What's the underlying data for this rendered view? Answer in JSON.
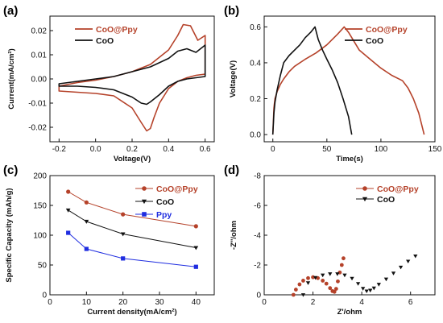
{
  "colors": {
    "coo_ppy": "#b5422a",
    "coo": "#111111",
    "ppy": "#1f2de0",
    "axis": "#111111"
  },
  "chart_data": [
    {
      "id": "a",
      "panel_label": "(a)",
      "type": "line",
      "xlabel": "Voltage(V)",
      "ylabel": "Current(mA/cm²)",
      "xlim": [
        -0.25,
        0.65
      ],
      "ylim": [
        -0.026,
        0.026
      ],
      "xticks": [
        -0.2,
        0.0,
        0.2,
        0.4,
        0.6
      ],
      "xtick_labels": [
        "-0.2",
        "0.0",
        "0.2",
        "0.4",
        "0.6"
      ],
      "yticks": [
        -0.02,
        -0.01,
        0.0,
        0.01,
        0.02
      ],
      "ytick_labels": [
        "-0.02",
        "-0.01",
        "0.00",
        "0.01",
        "0.02"
      ],
      "legend_position": "top-left",
      "series": [
        {
          "name": "CoO@Ppy",
          "color": "coo_ppy",
          "closed": true,
          "x": [
            -0.2,
            -0.1,
            0.0,
            0.1,
            0.2,
            0.3,
            0.35,
            0.4,
            0.45,
            0.48,
            0.52,
            0.56,
            0.6,
            0.6,
            0.55,
            0.5,
            0.45,
            0.4,
            0.35,
            0.32,
            0.3,
            0.28,
            0.25,
            0.2,
            0.1,
            0.0,
            -0.1,
            -0.2
          ],
          "y": [
            -0.003,
            -0.0015,
            -0.0005,
            0.001,
            0.003,
            0.006,
            0.009,
            0.012,
            0.018,
            0.0225,
            0.022,
            0.016,
            0.018,
            0.002,
            0.0015,
            0.0005,
            -0.001,
            -0.004,
            -0.01,
            -0.016,
            -0.0205,
            -0.0215,
            -0.018,
            -0.012,
            -0.007,
            -0.006,
            -0.0055,
            -0.005
          ]
        },
        {
          "name": "CoO",
          "color": "coo",
          "closed": true,
          "x": [
            -0.2,
            -0.1,
            0.0,
            0.1,
            0.2,
            0.3,
            0.4,
            0.45,
            0.5,
            0.55,
            0.6,
            0.6,
            0.55,
            0.5,
            0.45,
            0.4,
            0.35,
            0.3,
            0.28,
            0.25,
            0.2,
            0.1,
            0.0,
            -0.1,
            -0.2
          ],
          "y": [
            -0.002,
            -0.001,
            0.0,
            0.001,
            0.003,
            0.005,
            0.0085,
            0.0115,
            0.0125,
            0.011,
            0.014,
            0.001,
            0.0005,
            0.0,
            -0.001,
            -0.003,
            -0.0065,
            -0.0095,
            -0.0105,
            -0.01,
            -0.0075,
            -0.0045,
            -0.0035,
            -0.003,
            -0.003
          ]
        }
      ]
    },
    {
      "id": "b",
      "panel_label": "(b)",
      "type": "line",
      "xlabel": "Time(s)",
      "ylabel": "Voltage(V)",
      "xlim": [
        -8,
        150
      ],
      "ylim": [
        -0.04,
        0.66
      ],
      "xticks": [
        0,
        50,
        100,
        150
      ],
      "xtick_labels": [
        "0",
        "50",
        "100",
        "150"
      ],
      "yticks": [
        0.0,
        0.2,
        0.4,
        0.6
      ],
      "ytick_labels": [
        "0.0",
        "0.2",
        "0.4",
        "0.6"
      ],
      "legend_position": "top-right",
      "series": [
        {
          "name": "CoO@Ppy",
          "color": "coo_ppy",
          "closed": false,
          "x": [
            0,
            1,
            2,
            4,
            7,
            10,
            15,
            20,
            30,
            40,
            50,
            60,
            66,
            70,
            75,
            80,
            90,
            100,
            110,
            120,
            125,
            130,
            135,
            140
          ],
          "y": [
            0.0,
            0.15,
            0.2,
            0.24,
            0.28,
            0.31,
            0.35,
            0.38,
            0.42,
            0.455,
            0.5,
            0.56,
            0.6,
            0.57,
            0.52,
            0.47,
            0.42,
            0.37,
            0.33,
            0.3,
            0.26,
            0.2,
            0.12,
            0.0
          ]
        },
        {
          "name": "CoO",
          "color": "coo",
          "closed": false,
          "x": [
            0,
            1,
            2,
            4,
            7,
            10,
            15,
            20,
            25,
            30,
            35,
            39,
            42,
            46,
            50,
            55,
            60,
            65,
            70,
            73
          ],
          "y": [
            0.0,
            0.12,
            0.18,
            0.25,
            0.33,
            0.4,
            0.44,
            0.47,
            0.5,
            0.54,
            0.57,
            0.6,
            0.53,
            0.47,
            0.42,
            0.36,
            0.29,
            0.2,
            0.1,
            0.0
          ]
        }
      ]
    },
    {
      "id": "c",
      "panel_label": "(c)",
      "type": "line",
      "xlabel": "Current density(mA/cm²)",
      "ylabel": "Specific Capacity (mAh/g)",
      "xlim": [
        0,
        45
      ],
      "ylim": [
        0,
        200
      ],
      "xticks": [
        0,
        10,
        20,
        30,
        40
      ],
      "xtick_labels": [
        "0",
        "10",
        "20",
        "30",
        "40"
      ],
      "yticks": [
        0,
        50,
        100,
        150,
        200
      ],
      "ytick_labels": [
        "0",
        "50",
        "100",
        "150",
        "200"
      ],
      "legend_position": "top-right",
      "series": [
        {
          "name": "CoO@Ppy",
          "color": "coo_ppy",
          "marker": "circle",
          "x": [
            5,
            10,
            20,
            40
          ],
          "y": [
            173,
            155,
            135,
            115
          ]
        },
        {
          "name": "CoO",
          "color": "coo",
          "marker": "triangle-down",
          "x": [
            5,
            10,
            20,
            40
          ],
          "y": [
            142,
            123,
            102,
            79
          ]
        },
        {
          "name": "Ppy",
          "color": "ppy",
          "marker": "square",
          "x": [
            5,
            10,
            20,
            40
          ],
          "y": [
            104,
            77,
            61,
            47
          ]
        }
      ]
    },
    {
      "id": "d",
      "panel_label": "(d)",
      "type": "scatter",
      "xlabel": "Z'/ohm",
      "ylabel": "-Z''/ohm",
      "xlim": [
        0,
        7
      ],
      "ylim": [
        0,
        -8
      ],
      "xticks": [
        0,
        2,
        4,
        6
      ],
      "xtick_labels": [
        "0",
        "2",
        "4",
        "6"
      ],
      "yticks": [
        0,
        -2,
        -4,
        -6,
        -8
      ],
      "ytick_labels": [
        "0",
        "-2",
        "-4",
        "-6",
        "-8"
      ],
      "legend_position": "top-right",
      "series": [
        {
          "name": "CoO@Ppy",
          "color": "coo_ppy",
          "marker": "circle",
          "x": [
            1.2,
            1.3,
            1.45,
            1.6,
            1.8,
            2.0,
            2.2,
            2.4,
            2.55,
            2.7,
            2.8,
            2.88,
            2.95,
            3.02,
            3.1,
            3.18,
            3.25
          ],
          "y": [
            0,
            -0.35,
            -0.7,
            -0.95,
            -1.12,
            -1.18,
            -1.12,
            -0.95,
            -0.75,
            -0.45,
            -0.25,
            -0.2,
            -0.4,
            -0.9,
            -1.5,
            -2.0,
            -2.45
          ]
        },
        {
          "name": "CoO",
          "color": "coo",
          "marker": "triangle-down",
          "x": [
            1.6,
            1.8,
            2.1,
            2.4,
            2.7,
            3.0,
            3.3,
            3.6,
            3.85,
            4.05,
            4.2,
            4.35,
            4.5,
            4.7,
            5.0,
            5.3,
            5.6,
            5.9,
            6.2
          ],
          "y": [
            0,
            -0.8,
            -1.15,
            -1.32,
            -1.4,
            -1.4,
            -1.32,
            -1.1,
            -0.75,
            -0.42,
            -0.25,
            -0.3,
            -0.45,
            -0.7,
            -1.05,
            -1.45,
            -1.85,
            -2.25,
            -2.6
          ]
        }
      ]
    }
  ]
}
